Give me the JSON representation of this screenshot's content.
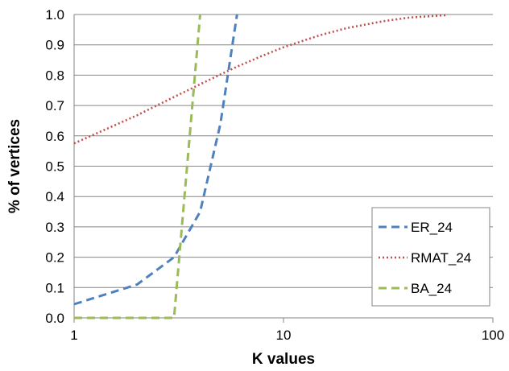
{
  "chart_data": {
    "type": "line",
    "title": "",
    "xlabel": "K values",
    "ylabel": "% of vertices",
    "xscale": "log",
    "xlim": [
      1,
      100
    ],
    "ylim": [
      0.0,
      1.0
    ],
    "x_ticks": [
      "1",
      "10",
      "100"
    ],
    "y_ticks": [
      "0.0",
      "0.1",
      "0.2",
      "0.3",
      "0.4",
      "0.5",
      "0.6",
      "0.7",
      "0.8",
      "0.9",
      "1.0"
    ],
    "grid": "horizontal",
    "legend_position": "bottom-right",
    "series": [
      {
        "name": "ER_24",
        "color": "#4F81BD",
        "dash": "dashed",
        "points": [
          [
            1,
            0.045
          ],
          [
            2,
            0.11
          ],
          [
            3,
            0.2
          ],
          [
            4,
            0.35
          ],
          [
            5,
            0.64
          ],
          [
            6,
            1.0
          ]
        ]
      },
      {
        "name": "RMAT_24",
        "color": "#C0504D",
        "dash": "dotted",
        "points": [
          [
            1,
            0.575
          ],
          [
            2,
            0.668
          ],
          [
            3,
            0.728
          ],
          [
            4,
            0.77
          ],
          [
            5,
            0.802
          ],
          [
            6,
            0.828
          ],
          [
            8,
            0.865
          ],
          [
            10,
            0.892
          ],
          [
            15,
            0.932
          ],
          [
            20,
            0.955
          ],
          [
            30,
            0.978
          ],
          [
            40,
            0.99
          ],
          [
            60,
            0.998
          ]
        ]
      },
      {
        "name": "BA_24",
        "color": "#9BBB59",
        "dash": "dashed",
        "points": [
          [
            1,
            0.0
          ],
          [
            2,
            0.0
          ],
          [
            3,
            0.0
          ],
          [
            4,
            1.0
          ]
        ]
      }
    ]
  }
}
